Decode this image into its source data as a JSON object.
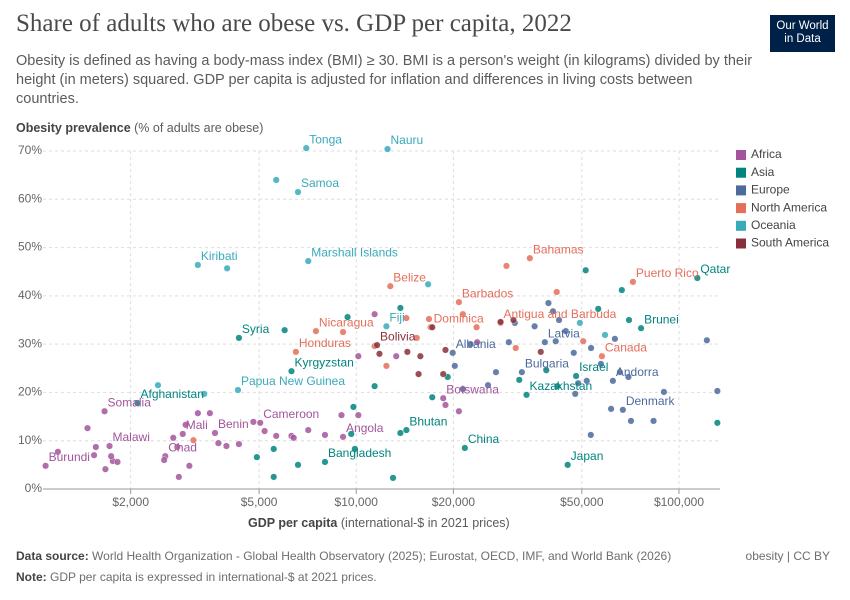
{
  "chart_data": {
    "type": "scatter",
    "title": "Share of adults who are obese vs. GDP per capita, 2022",
    "subtitle": "Obesity is defined as having a body-mass index (BMI) ≥ 30. BMI is a person's weight (in kilograms) divided by their height (in meters) squared. GDP per capita is adjusted for inflation and differences in living costs between countries.",
    "logo": [
      "Our World",
      "in Data"
    ],
    "y_label": "Obesity prevalence",
    "y_label_note": "(% of adults are obese)",
    "x_label": "GDP per capita",
    "x_label_note": "(international-$ in 2021 prices)",
    "source_label": "Data source:",
    "source": "World Health Organization - Global Health Observatory (2025); Eurostat, OECD, IMF, and World Bank (2026)",
    "note_label": "Note:",
    "note": "GDP per capita is expressed in international-$ at 2021 prices.",
    "license": "obesity | CC BY",
    "xscale": "log",
    "grid": true,
    "legend_position": "right",
    "xlim": [
      1070,
      134000
    ],
    "ylim": [
      0,
      70
    ],
    "xticks": [
      {
        "value": 2000,
        "label": "$2,000"
      },
      {
        "value": 5000,
        "label": "$5,000"
      },
      {
        "value": 10000,
        "label": "$10,000"
      },
      {
        "value": 20000,
        "label": "$20,000"
      },
      {
        "value": 50000,
        "label": "$50,000"
      },
      {
        "value": 100000,
        "label": "$100,000"
      }
    ],
    "yticks": [
      {
        "value": 0,
        "label": "0%"
      },
      {
        "value": 10,
        "label": "10%"
      },
      {
        "value": 20,
        "label": "20%"
      },
      {
        "value": 30,
        "label": "30%"
      },
      {
        "value": 40,
        "label": "40%"
      },
      {
        "value": 50,
        "label": "50%"
      },
      {
        "value": 60,
        "label": "60%"
      },
      {
        "value": 70,
        "label": "70%"
      }
    ],
    "series": [
      {
        "name": "Africa",
        "color": "#a2559c",
        "x": [
          18600,
          1660,
          5040,
          2900,
          3650,
          9100,
          1720,
          2560,
          1090,
          1190,
          1540,
          1560,
          1670,
          1760,
          1820,
          1740,
          1470,
          2540,
          2710,
          2790,
          2960,
          3040,
          2820,
          3230,
          3520,
          3740,
          3960,
          4330,
          4800,
          5200,
          5650,
          6300,
          6400,
          7100,
          8000,
          9000,
          10150,
          10150,
          11400,
          13300,
          18900,
          20800,
          23700
        ],
        "values": [
          18.8,
          16.1,
          13.7,
          11.4,
          11.6,
          10.8,
          8.9,
          6.8,
          4.8,
          7.7,
          7.0,
          8.7,
          4.1,
          5.8,
          5.6,
          6.8,
          12.6,
          6.0,
          10.6,
          8.7,
          13.3,
          4.8,
          2.5,
          15.7,
          15.7,
          9.5,
          8.9,
          9.3,
          13.9,
          12.0,
          11.0,
          11.0,
          10.6,
          12.2,
          11.2,
          15.3,
          15.3,
          27.5,
          36.2,
          27.5,
          17.4,
          16.1,
          30.4
        ],
        "labels": [
          "Botswana",
          "Somalia",
          "Cameroon",
          "Mali",
          "Benin",
          "Angola",
          "Malawi",
          "Chad",
          "Burundi",
          null,
          null,
          null,
          null,
          null,
          null,
          null,
          null,
          null,
          null,
          null,
          null,
          null,
          null,
          null,
          null,
          null,
          null,
          null,
          null,
          null,
          null,
          null,
          null,
          null,
          null,
          null,
          null,
          null,
          null,
          null,
          null,
          null,
          null
        ]
      },
      {
        "name": "Asia",
        "color": "#00847e",
        "x": [
          114000,
          76300,
          4330,
          6300,
          48000,
          2100,
          33700,
          14300,
          21700,
          8000,
          45200,
          4920,
          5550,
          5550,
          6000,
          6600,
          9900,
          9650,
          9800,
          9400,
          11400,
          13700,
          13700,
          13000,
          17200,
          19200,
          32000,
          51400,
          56200,
          70000,
          66500,
          131500,
          38800,
          42000
        ],
        "values": [
          43.7,
          33.3,
          31.3,
          24.4,
          23.4,
          17.8,
          19.5,
          12.2,
          8.5,
          5.6,
          5.0,
          6.6,
          8.3,
          2.5,
          32.9,
          5.0,
          8.3,
          11.4,
          17.0,
          35.6,
          21.3,
          11.6,
          37.5,
          2.3,
          19.0,
          23.2,
          22.6,
          45.3,
          37.3,
          35.0,
          41.2,
          13.7,
          24.6,
          21.3
        ],
        "labels": [
          "Qatar",
          "Brunei",
          "Syria",
          "Kyrgyzstan",
          "Israel",
          "Afghanistan",
          "Kazakhstan",
          "Bhutan",
          "China",
          "Bangladesh",
          "Japan",
          null,
          null,
          null,
          null,
          null,
          null,
          null,
          null,
          null,
          null,
          null,
          null,
          null,
          null,
          null,
          null,
          null,
          null,
          null,
          null,
          null,
          null,
          null
        ]
      },
      {
        "name": "Europe",
        "color": "#4c6a9c",
        "x": [
          38400,
          19900,
          32600,
          62400,
          67000,
          21400,
          25600,
          20200,
          22600,
          27100,
          29700,
          31000,
          35700,
          39400,
          40700,
          41500,
          42500,
          44600,
          47200,
          48700,
          47700,
          51800,
          53400,
          57300,
          63300,
          65600,
          69700,
          61600,
          71000,
          83400,
          89800,
          122000,
          131500,
          53300
        ],
        "values": [
          30.4,
          28.2,
          24.2,
          22.4,
          16.4,
          20.7,
          21.5,
          25.5,
          30.0,
          24.2,
          30.4,
          34.4,
          33.7,
          38.5,
          36.8,
          30.6,
          35.0,
          32.7,
          28.2,
          21.9,
          19.7,
          22.4,
          29.2,
          25.9,
          31.1,
          24.2,
          23.2,
          16.6,
          14.1,
          14.1,
          20.1,
          30.8,
          20.3,
          11.2
        ],
        "labels": [
          "Latvia",
          "Albania",
          "Bulgaria",
          "Andorra",
          "Denmark",
          null,
          null,
          null,
          null,
          null,
          null,
          null,
          null,
          null,
          null,
          null,
          null,
          null,
          null,
          null,
          null,
          null,
          null,
          null,
          null,
          null,
          null,
          null,
          null,
          null,
          null,
          null,
          null,
          null
        ]
      },
      {
        "name": "North America",
        "color": "#e56e5a",
        "x": [
          34500,
          72000,
          12750,
          20800,
          7500,
          17000,
          28000,
          6500,
          57700,
          9100,
          12400,
          11400,
          14300,
          15400,
          16800,
          21400,
          23600,
          29200,
          31200,
          41800,
          50500,
          3130
        ],
        "values": [
          47.8,
          42.9,
          42.0,
          38.7,
          32.7,
          33.5,
          34.4,
          28.4,
          27.5,
          32.5,
          25.5,
          29.6,
          35.4,
          31.3,
          35.2,
          36.2,
          33.5,
          46.2,
          29.2,
          40.8,
          30.6,
          10.1
        ],
        "labels": [
          "Bahamas",
          "Puerto Rico",
          "Belize",
          "Barbados",
          "Nicaragua",
          "Dominica",
          "Antigua and Barbuda",
          "Honduras",
          "Canada",
          null,
          null,
          null,
          null,
          null,
          null,
          null,
          null,
          null,
          null,
          null,
          null,
          null
        ]
      },
      {
        "name": "Oceania",
        "color": "#38aaba",
        "x": [
          7000,
          12500,
          6600,
          3230,
          7100,
          12400,
          4300,
          5650,
          3980,
          2430,
          3380,
          16700,
          49300,
          59000
        ],
        "values": [
          70.6,
          70.4,
          61.5,
          46.4,
          47.2,
          33.7,
          20.5,
          64.0,
          45.7,
          21.5,
          19.7,
          42.4,
          34.4,
          31.9
        ],
        "labels": [
          "Tonga",
          "Nauru",
          "Samoa",
          "Kiribati",
          "Marshall Islands",
          "Fiji",
          "Papua New Guinea",
          null,
          null,
          null,
          null,
          null,
          null,
          null
        ]
      },
      {
        "name": "South America",
        "color": "#883039",
        "x": [
          11600,
          11800,
          14400,
          15800,
          15600,
          18600,
          17200,
          18900,
          28000,
          30700,
          37300
        ],
        "values": [
          29.8,
          28.0,
          28.4,
          27.5,
          23.8,
          23.8,
          33.5,
          28.8,
          34.6,
          35.0,
          28.4
        ],
        "labels": [
          "Bolivia",
          null,
          null,
          null,
          null,
          null,
          null,
          null,
          null,
          null,
          null
        ]
      }
    ]
  }
}
